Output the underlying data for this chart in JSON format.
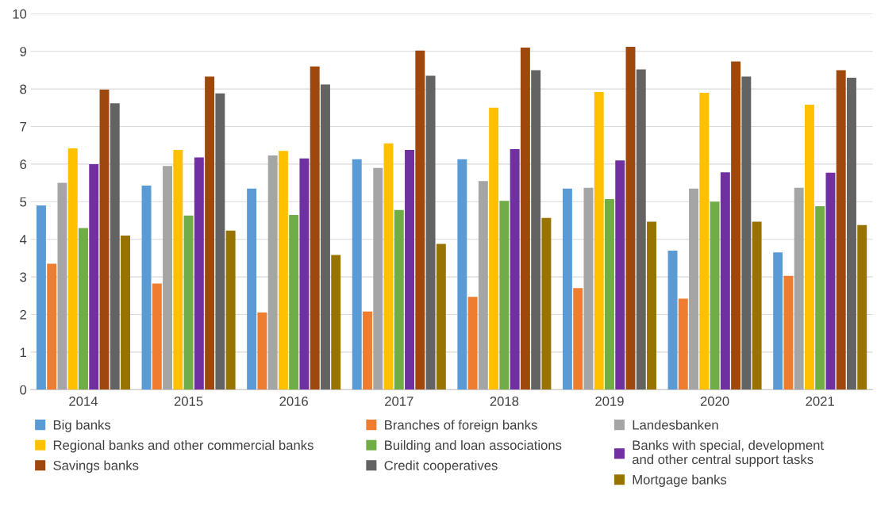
{
  "chart_data": {
    "type": "bar",
    "categories": [
      "2014",
      "2015",
      "2016",
      "2017",
      "2018",
      "2019",
      "2020",
      "2021"
    ],
    "series": [
      {
        "name": "Big banks",
        "color": "#5b9bd5",
        "values": [
          4.9,
          5.43,
          5.35,
          6.13,
          6.13,
          5.35,
          3.7,
          3.65
        ]
      },
      {
        "name": "Branches of foreign banks",
        "color": "#ed7d31",
        "values": [
          3.35,
          2.82,
          2.05,
          2.08,
          2.47,
          2.7,
          2.42,
          3.03
        ]
      },
      {
        "name": "Landesbanken",
        "color": "#a5a5a5",
        "values": [
          5.5,
          5.95,
          6.23,
          5.9,
          5.55,
          5.37,
          5.35,
          5.37
        ]
      },
      {
        "name": "Regional banks and other commercial banks",
        "color": "#ffc000",
        "values": [
          6.42,
          6.38,
          6.35,
          6.55,
          7.5,
          7.92,
          7.9,
          7.58
        ]
      },
      {
        "name": "Building and loan associations",
        "color": "#70ad47",
        "values": [
          4.3,
          4.63,
          4.65,
          4.78,
          5.02,
          5.07,
          5.0,
          4.88
        ]
      },
      {
        "name": "Banks with special, development\nand other central support tasks",
        "color": "#7030a0",
        "values": [
          6.0,
          6.18,
          6.15,
          6.38,
          6.4,
          6.1,
          5.78,
          5.77
        ]
      },
      {
        "name": "Savings banks",
        "color": "#9e480e",
        "values": [
          7.98,
          8.33,
          8.6,
          9.02,
          9.1,
          9.12,
          8.73,
          8.5
        ]
      },
      {
        "name": "Credit cooperatives",
        "color": "#636363",
        "values": [
          7.62,
          7.88,
          8.12,
          8.35,
          8.5,
          8.52,
          8.33,
          8.3
        ]
      },
      {
        "name": "Mortgage banks",
        "color": "#997300",
        "values": [
          4.1,
          4.23,
          3.58,
          3.88,
          4.57,
          4.47,
          4.47,
          4.38
        ]
      }
    ],
    "ylim": [
      0,
      10
    ],
    "yticks": [
      0,
      1,
      2,
      3,
      4,
      5,
      6,
      7,
      8,
      9,
      10
    ],
    "grid": "y",
    "legend": "bottom"
  }
}
